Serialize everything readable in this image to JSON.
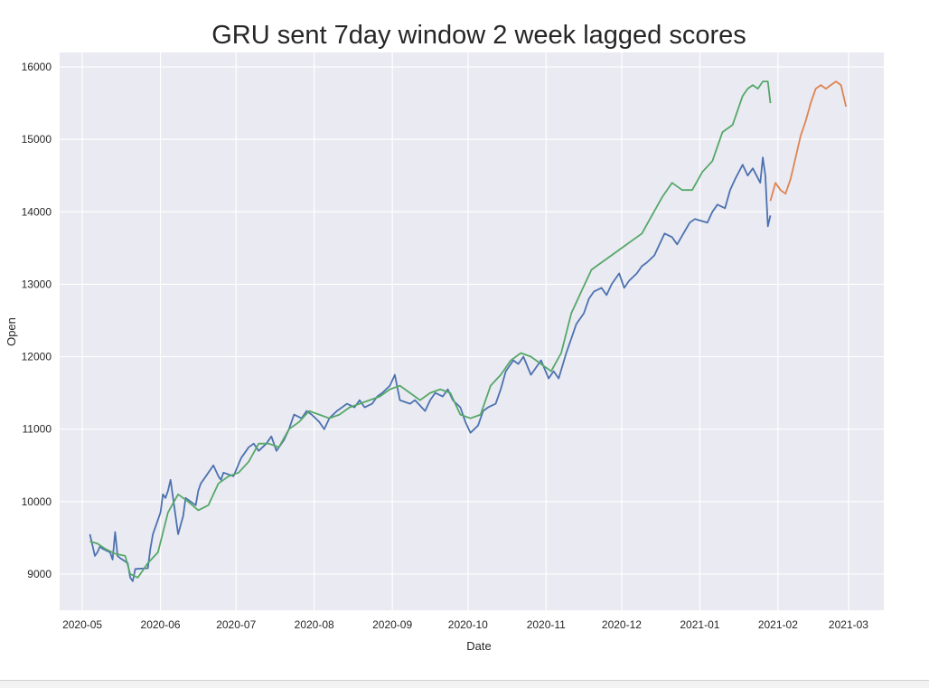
{
  "chart_data": {
    "type": "line",
    "title": "GRU sent 7day window 2 week lagged scores",
    "xlabel": "Date",
    "ylabel": "Open",
    "xlim": [
      "2020-04-22",
      "2021-03-15"
    ],
    "ylim": [
      8500,
      16200
    ],
    "yticks": [
      9000,
      10000,
      11000,
      12000,
      13000,
      14000,
      15000,
      16000
    ],
    "ytick_labels": [
      "9000",
      "10000",
      "11000",
      "12000",
      "13000",
      "14000",
      "15000",
      "16000"
    ],
    "xticks": [
      "2020-05-01",
      "2020-06-01",
      "2020-07-01",
      "2020-08-01",
      "2020-09-01",
      "2020-10-01",
      "2020-11-01",
      "2020-12-01",
      "2021-01-01",
      "2021-02-01",
      "2021-03-01"
    ],
    "xtick_labels": [
      "2020-05",
      "2020-06",
      "2020-07",
      "2020-08",
      "2020-09",
      "2020-10",
      "2020-11",
      "2020-12",
      "2021-01",
      "2021-02",
      "2021-03"
    ],
    "grid": true,
    "background": "#eaeaf2",
    "series": [
      {
        "color": "#4c72b0",
        "x": [
          "2020-05-04",
          "2020-05-06",
          "2020-05-07",
          "2020-05-08",
          "2020-05-09",
          "2020-05-12",
          "2020-05-13",
          "2020-05-14",
          "2020-05-15",
          "2020-05-16",
          "2020-05-19",
          "2020-05-20",
          "2020-05-21",
          "2020-05-22",
          "2020-05-27",
          "2020-05-28",
          "2020-05-29",
          "2020-06-01",
          "2020-06-02",
          "2020-06-03",
          "2020-06-04",
          "2020-06-05",
          "2020-06-08",
          "2020-06-10",
          "2020-06-11",
          "2020-06-15",
          "2020-06-16",
          "2020-06-17",
          "2020-06-19",
          "2020-06-22",
          "2020-06-24",
          "2020-06-25",
          "2020-06-26",
          "2020-06-30",
          "2020-07-03",
          "2020-07-06",
          "2020-07-08",
          "2020-07-10",
          "2020-07-13",
          "2020-07-15",
          "2020-07-17",
          "2020-07-20",
          "2020-07-22",
          "2020-07-24",
          "2020-07-27",
          "2020-07-29",
          "2020-07-31",
          "2020-08-03",
          "2020-08-05",
          "2020-08-07",
          "2020-08-10",
          "2020-08-12",
          "2020-08-14",
          "2020-08-17",
          "2020-08-19",
          "2020-08-21",
          "2020-08-24",
          "2020-08-26",
          "2020-08-28",
          "2020-08-31",
          "2020-09-02",
          "2020-09-04",
          "2020-09-08",
          "2020-09-10",
          "2020-09-14",
          "2020-09-16",
          "2020-09-18",
          "2020-09-21",
          "2020-09-23",
          "2020-09-25",
          "2020-09-28",
          "2020-09-30",
          "2020-10-02",
          "2020-10-05",
          "2020-10-07",
          "2020-10-09",
          "2020-10-12",
          "2020-10-14",
          "2020-10-16",
          "2020-10-19",
          "2020-10-21",
          "2020-10-23",
          "2020-10-26",
          "2020-10-28",
          "2020-10-30",
          "2020-11-02",
          "2020-11-04",
          "2020-11-06",
          "2020-11-09",
          "2020-11-11",
          "2020-11-13",
          "2020-11-16",
          "2020-11-18",
          "2020-11-20",
          "2020-11-23",
          "2020-11-25",
          "2020-11-27",
          "2020-11-30",
          "2020-12-02",
          "2020-12-04",
          "2020-12-07",
          "2020-12-09",
          "2020-12-11",
          "2020-12-14",
          "2020-12-16",
          "2020-12-18",
          "2020-12-21",
          "2020-12-23",
          "2020-12-28",
          "2020-12-30",
          "2021-01-04",
          "2021-01-06",
          "2021-01-08",
          "2021-01-11",
          "2021-01-13",
          "2021-01-15",
          "2021-01-18",
          "2021-01-20",
          "2021-01-22",
          "2021-01-25",
          "2021-01-26",
          "2021-01-27",
          "2021-01-28",
          "2021-01-29"
        ],
        "values": [
          9550,
          9250,
          9300,
          9380,
          9350,
          9300,
          9200,
          9580,
          9250,
          9220,
          9150,
          8950,
          8900,
          9070,
          9080,
          9350,
          9550,
          9850,
          10100,
          10050,
          10150,
          10300,
          9550,
          9800,
          10050,
          9950,
          10150,
          10250,
          10350,
          10500,
          10350,
          10300,
          10400,
          10350,
          10600,
          10750,
          10800,
          10700,
          10800,
          10900,
          10700,
          10850,
          11000,
          11200,
          11150,
          11250,
          11200,
          11100,
          11000,
          11150,
          11250,
          11300,
          11350,
          11300,
          11400,
          11300,
          11350,
          11450,
          11500,
          11600,
          11750,
          11400,
          11350,
          11400,
          11250,
          11400,
          11500,
          11450,
          11550,
          11400,
          11300,
          11100,
          10950,
          11050,
          11250,
          11300,
          11350,
          11550,
          11800,
          11950,
          11900,
          12000,
          11750,
          11850,
          11950,
          11700,
          11800,
          11700,
          12050,
          12250,
          12450,
          12600,
          12800,
          12900,
          12950,
          12850,
          13000,
          13150,
          12950,
          13050,
          13150,
          13250,
          13300,
          13400,
          13550,
          13700,
          13650,
          13550,
          13850,
          13900,
          13850,
          14000,
          14100,
          14050,
          14300,
          14450,
          14650,
          14500,
          14600,
          14400,
          14750,
          14500,
          13800,
          13950
        ]
      },
      {
        "color": "#55a868",
        "x": [
          "2020-05-04",
          "2020-05-07",
          "2020-05-10",
          "2020-05-14",
          "2020-05-18",
          "2020-05-20",
          "2020-05-23",
          "2020-05-27",
          "2020-05-31",
          "2020-06-04",
          "2020-06-08",
          "2020-06-12",
          "2020-06-16",
          "2020-06-20",
          "2020-06-24",
          "2020-06-28",
          "2020-07-02",
          "2020-07-06",
          "2020-07-10",
          "2020-07-14",
          "2020-07-18",
          "2020-07-22",
          "2020-07-26",
          "2020-07-30",
          "2020-08-03",
          "2020-08-07",
          "2020-08-11",
          "2020-08-15",
          "2020-08-19",
          "2020-08-23",
          "2020-08-27",
          "2020-08-31",
          "2020-09-04",
          "2020-09-08",
          "2020-09-12",
          "2020-09-16",
          "2020-09-20",
          "2020-09-24",
          "2020-09-28",
          "2020-10-02",
          "2020-10-06",
          "2020-10-10",
          "2020-10-14",
          "2020-10-18",
          "2020-10-22",
          "2020-10-26",
          "2020-10-30",
          "2020-11-03",
          "2020-11-07",
          "2020-11-11",
          "2020-11-15",
          "2020-11-19",
          "2020-11-23",
          "2020-11-27",
          "2020-12-01",
          "2020-12-05",
          "2020-12-09",
          "2020-12-13",
          "2020-12-17",
          "2020-12-21",
          "2020-12-25",
          "2020-12-29",
          "2021-01-02",
          "2021-01-06",
          "2021-01-10",
          "2021-01-14",
          "2021-01-18",
          "2021-01-20",
          "2021-01-22",
          "2021-01-24",
          "2021-01-26",
          "2021-01-28",
          "2021-01-29"
        ],
        "values": [
          9450,
          9420,
          9350,
          9280,
          9250,
          9000,
          8950,
          9150,
          9300,
          9850,
          10100,
          10000,
          9880,
          9950,
          10250,
          10350,
          10400,
          10550,
          10800,
          10800,
          10750,
          11000,
          11100,
          11250,
          11200,
          11150,
          11200,
          11300,
          11350,
          11400,
          11450,
          11550,
          11600,
          11500,
          11400,
          11500,
          11550,
          11500,
          11200,
          11150,
          11200,
          11600,
          11750,
          11950,
          12050,
          12000,
          11900,
          11800,
          12050,
          12600,
          12900,
          13200,
          13300,
          13400,
          13500,
          13600,
          13700,
          13950,
          14200,
          14400,
          14300,
          14300,
          14550,
          14700,
          15100,
          15200,
          15600,
          15700,
          15750,
          15700,
          15800,
          15800,
          15500
        ]
      },
      {
        "color": "#dd8452",
        "x": [
          "2021-01-29",
          "2021-01-31",
          "2021-02-02",
          "2021-02-04",
          "2021-02-06",
          "2021-02-08",
          "2021-02-10",
          "2021-02-12",
          "2021-02-14",
          "2021-02-16",
          "2021-02-18",
          "2021-02-20",
          "2021-02-22",
          "2021-02-24",
          "2021-02-26",
          "2021-02-28"
        ],
        "values": [
          14150,
          14400,
          14300,
          14250,
          14450,
          14750,
          15050,
          15250,
          15500,
          15700,
          15750,
          15700,
          15750,
          15800,
          15750,
          15450
        ]
      }
    ]
  }
}
